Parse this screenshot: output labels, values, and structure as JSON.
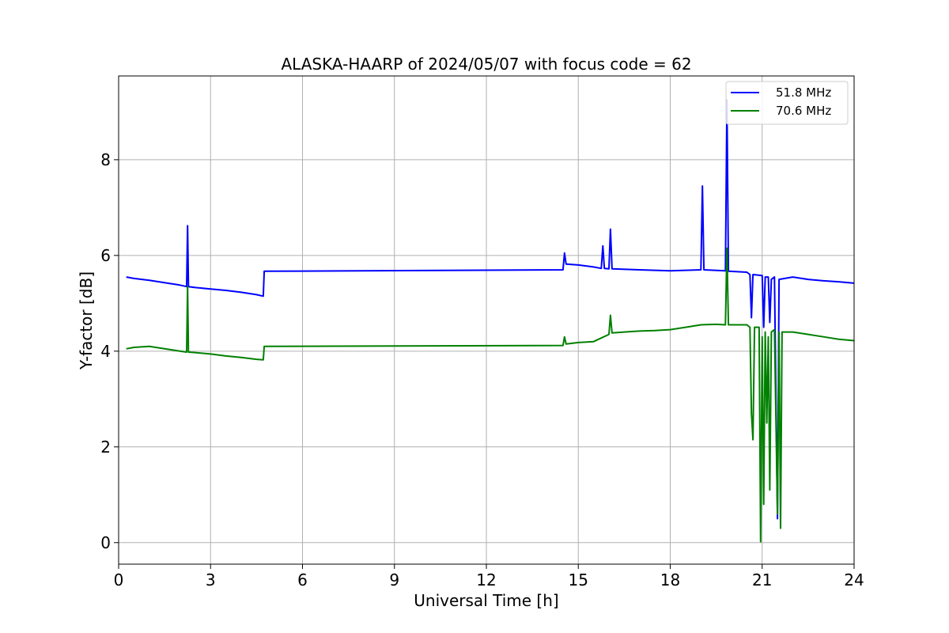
{
  "chart_data": {
    "type": "line",
    "title": "ALASKA-HAARP of 2024/05/07 with focus code = 62",
    "xlabel": "Universal Time [h]",
    "ylabel": "Y-factor [dB]",
    "xlim": [
      0,
      24
    ],
    "ylim": [
      -0.45,
      9.75
    ],
    "xticks": [
      0,
      3,
      6,
      9,
      12,
      15,
      18,
      21,
      24
    ],
    "yticks": [
      0,
      2,
      4,
      6,
      8
    ],
    "grid": true,
    "legend_position": "top-right",
    "series": [
      {
        "name": "51.8 MHz",
        "color": "#0000ff",
        "points": [
          [
            0.25,
            5.55
          ],
          [
            0.5,
            5.52
          ],
          [
            1.0,
            5.48
          ],
          [
            1.5,
            5.43
          ],
          [
            2.0,
            5.38
          ],
          [
            2.22,
            5.35
          ],
          [
            2.25,
            6.62
          ],
          [
            2.28,
            5.35
          ],
          [
            2.5,
            5.33
          ],
          [
            3.0,
            5.3
          ],
          [
            3.5,
            5.27
          ],
          [
            4.0,
            5.23
          ],
          [
            4.5,
            5.18
          ],
          [
            4.72,
            5.15
          ],
          [
            4.75,
            5.67
          ],
          [
            14.5,
            5.7
          ],
          [
            14.55,
            6.05
          ],
          [
            14.6,
            5.82
          ],
          [
            15.0,
            5.8
          ],
          [
            15.5,
            5.76
          ],
          [
            15.75,
            5.73
          ],
          [
            15.8,
            6.2
          ],
          [
            15.85,
            5.73
          ],
          [
            16.0,
            5.72
          ],
          [
            16.05,
            6.55
          ],
          [
            16.1,
            5.72
          ],
          [
            17.0,
            5.7
          ],
          [
            18.0,
            5.68
          ],
          [
            19.0,
            5.7
          ],
          [
            19.05,
            7.45
          ],
          [
            19.1,
            5.7
          ],
          [
            19.8,
            5.68
          ],
          [
            19.85,
            9.25
          ],
          [
            19.9,
            5.67
          ],
          [
            20.5,
            5.65
          ],
          [
            20.6,
            5.6
          ],
          [
            20.65,
            4.7
          ],
          [
            20.7,
            5.6
          ],
          [
            21.0,
            5.58
          ],
          [
            21.05,
            4.5
          ],
          [
            21.1,
            5.55
          ],
          [
            21.2,
            5.55
          ],
          [
            21.25,
            4.6
          ],
          [
            21.3,
            5.5
          ],
          [
            21.4,
            5.55
          ],
          [
            21.5,
            0.5
          ],
          [
            21.55,
            5.5
          ],
          [
            22.0,
            5.55
          ],
          [
            22.5,
            5.5
          ],
          [
            23.0,
            5.47
          ],
          [
            23.5,
            5.45
          ],
          [
            24.0,
            5.42
          ]
        ]
      },
      {
        "name": "70.6 MHz",
        "color": "#008000",
        "points": [
          [
            0.25,
            4.05
          ],
          [
            0.5,
            4.08
          ],
          [
            1.0,
            4.1
          ],
          [
            1.5,
            4.05
          ],
          [
            2.0,
            4.0
          ],
          [
            2.22,
            3.98
          ],
          [
            2.25,
            5.35
          ],
          [
            2.28,
            3.98
          ],
          [
            2.5,
            3.97
          ],
          [
            3.0,
            3.94
          ],
          [
            3.5,
            3.9
          ],
          [
            4.0,
            3.87
          ],
          [
            4.5,
            3.83
          ],
          [
            4.72,
            3.82
          ],
          [
            4.75,
            4.1
          ],
          [
            14.5,
            4.12
          ],
          [
            14.55,
            4.3
          ],
          [
            14.6,
            4.15
          ],
          [
            15.0,
            4.18
          ],
          [
            15.5,
            4.2
          ],
          [
            16.0,
            4.35
          ],
          [
            16.05,
            4.75
          ],
          [
            16.1,
            4.38
          ],
          [
            16.5,
            4.4
          ],
          [
            17.0,
            4.42
          ],
          [
            17.5,
            4.43
          ],
          [
            18.0,
            4.45
          ],
          [
            18.5,
            4.5
          ],
          [
            19.0,
            4.55
          ],
          [
            19.5,
            4.56
          ],
          [
            19.8,
            4.55
          ],
          [
            19.85,
            6.15
          ],
          [
            19.9,
            4.55
          ],
          [
            20.5,
            4.55
          ],
          [
            20.6,
            4.5
          ],
          [
            20.65,
            2.7
          ],
          [
            20.7,
            2.15
          ],
          [
            20.75,
            4.5
          ],
          [
            20.9,
            4.5
          ],
          [
            20.95,
            0.02
          ],
          [
            21.0,
            4.3
          ],
          [
            21.05,
            0.8
          ],
          [
            21.1,
            4.4
          ],
          [
            21.15,
            2.5
          ],
          [
            21.2,
            4.3
          ],
          [
            21.25,
            1.1
          ],
          [
            21.3,
            4.4
          ],
          [
            21.4,
            4.45
          ],
          [
            21.5,
            0.6
          ],
          [
            21.55,
            4.4
          ],
          [
            21.6,
            0.3
          ],
          [
            21.65,
            4.4
          ],
          [
            22.0,
            4.4
          ],
          [
            22.5,
            4.35
          ],
          [
            23.0,
            4.3
          ],
          [
            23.5,
            4.25
          ],
          [
            24.0,
            4.22
          ]
        ]
      }
    ]
  }
}
